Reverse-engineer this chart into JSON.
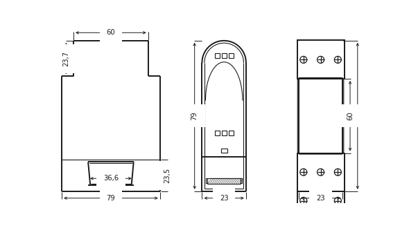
{
  "bg_color": "#ffffff",
  "line_color": "#1a1a1a",
  "fig_width": 5.9,
  "fig_height": 3.3,
  "dpi": 100
}
